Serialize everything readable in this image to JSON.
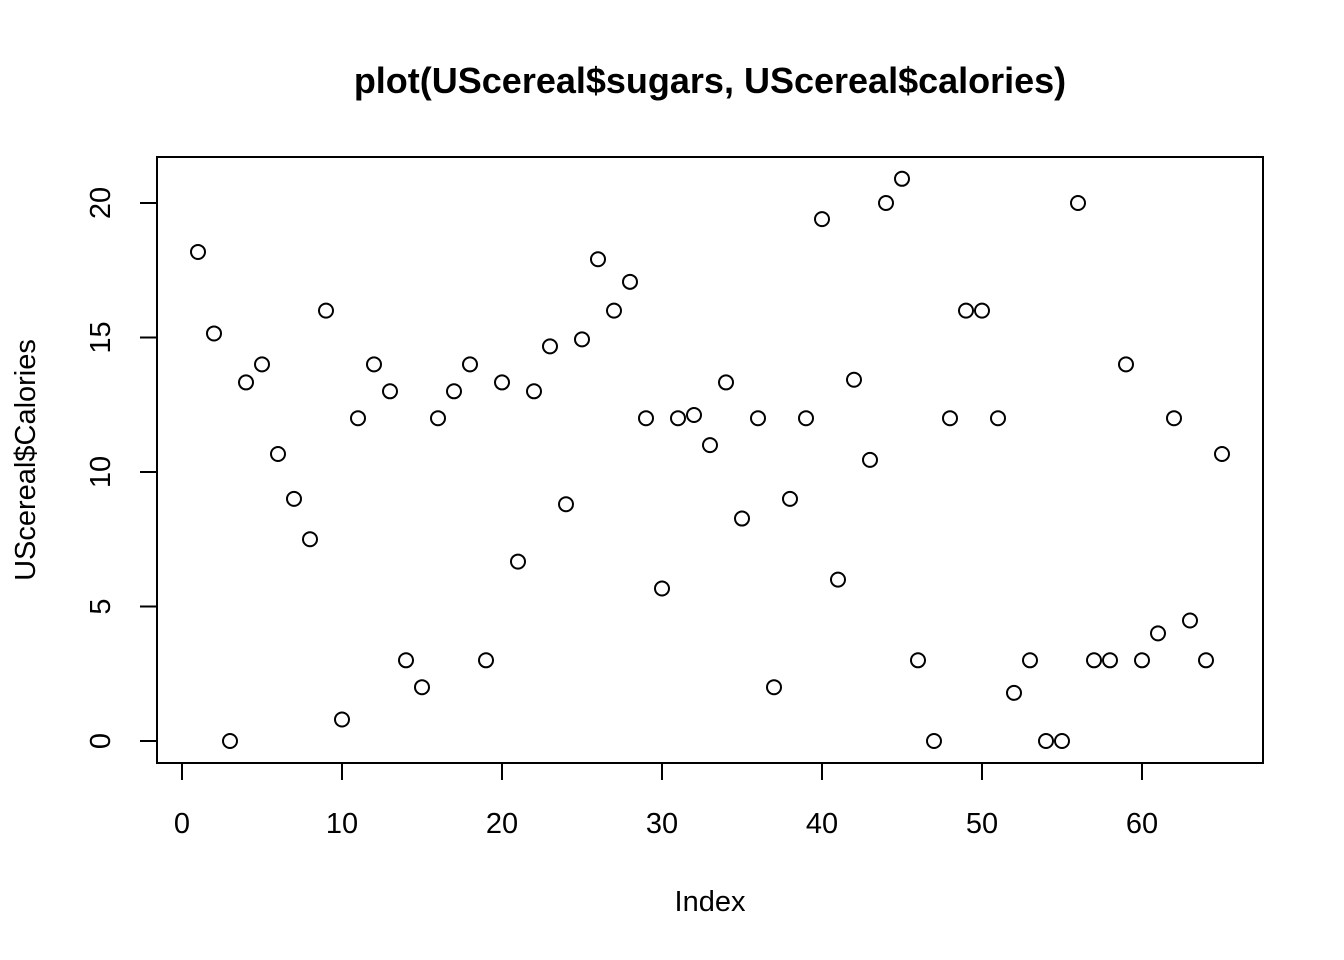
{
  "chart_data": {
    "type": "scatter",
    "title": "plot(UScereal$sugars, UScereal$calories)",
    "xlabel": "Index",
    "ylabel": "UScereal$Calories",
    "xlim": [
      0,
      65
    ],
    "ylim": [
      0,
      20.9
    ],
    "xticks": [
      0,
      10,
      20,
      30,
      40,
      50,
      60
    ],
    "yticks": [
      0,
      5,
      10,
      15,
      20
    ],
    "grid": false,
    "legend": "none",
    "x": [
      1,
      2,
      3,
      4,
      5,
      6,
      7,
      8,
      9,
      10,
      11,
      12,
      13,
      14,
      15,
      16,
      17,
      18,
      19,
      20,
      21,
      22,
      23,
      24,
      25,
      26,
      27,
      28,
      29,
      30,
      31,
      32,
      33,
      34,
      35,
      36,
      37,
      38,
      39,
      40,
      41,
      42,
      43,
      44,
      45,
      46,
      47,
      48,
      49,
      50,
      51,
      52,
      53,
      54,
      55,
      56,
      57,
      58,
      59,
      60,
      61,
      62,
      63,
      64,
      65
    ],
    "y": [
      18.18,
      15.15,
      0,
      13.33,
      14,
      10.67,
      9,
      7.5,
      16,
      0.8,
      12,
      14,
      13,
      3,
      2,
      12,
      13,
      14,
      3,
      13.33,
      6.67,
      13,
      14.67,
      8.8,
      14.93,
      17.91,
      16,
      17.07,
      12,
      5.67,
      12,
      12.12,
      11,
      13.33,
      8.27,
      12,
      2,
      9,
      12,
      19.4,
      6,
      13.43,
      10.45,
      20,
      20.9,
      3,
      0,
      12,
      16,
      16,
      12,
      1.79,
      3,
      0,
      0,
      20,
      3,
      3,
      14,
      3,
      4,
      12,
      4.48,
      3,
      10.67
    ]
  }
}
